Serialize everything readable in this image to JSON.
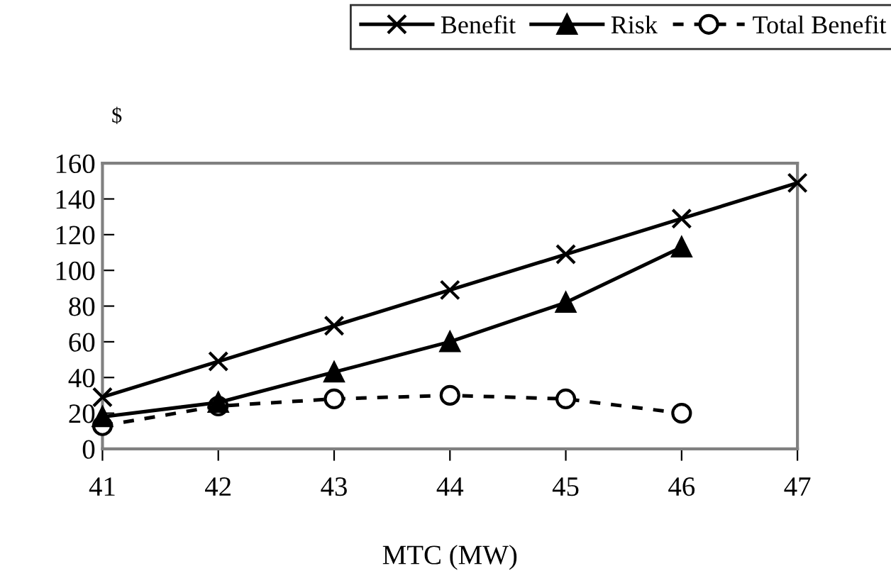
{
  "chart_data": {
    "type": "line",
    "ylabel": "$",
    "xlabel": "MTC (MW)",
    "x": [
      41,
      42,
      43,
      44,
      45,
      46,
      47
    ],
    "series": [
      {
        "name": "Benefit",
        "color": "#000000",
        "values": [
          29,
          49,
          69,
          89,
          109,
          129,
          149
        ],
        "marker": "cross",
        "line_style": "solid"
      },
      {
        "name": "Risk",
        "color": "#000000",
        "values": [
          18,
          26,
          43,
          60,
          82,
          113,
          null
        ],
        "marker": "triangle",
        "line_style": "solid"
      },
      {
        "name": "Total Benefit",
        "color": "#000000",
        "values": [
          13,
          24,
          28,
          30,
          28,
          20,
          null
        ],
        "marker": "circle",
        "line_style": "dashed"
      }
    ],
    "xlim": [
      41,
      47
    ],
    "xticks": [
      41,
      42,
      43,
      44,
      45,
      46,
      47
    ],
    "ylim": [
      0,
      160
    ],
    "yticks": [
      0,
      20,
      40,
      60,
      80,
      100,
      120,
      140,
      160
    ],
    "grid": false,
    "legend": "top"
  }
}
